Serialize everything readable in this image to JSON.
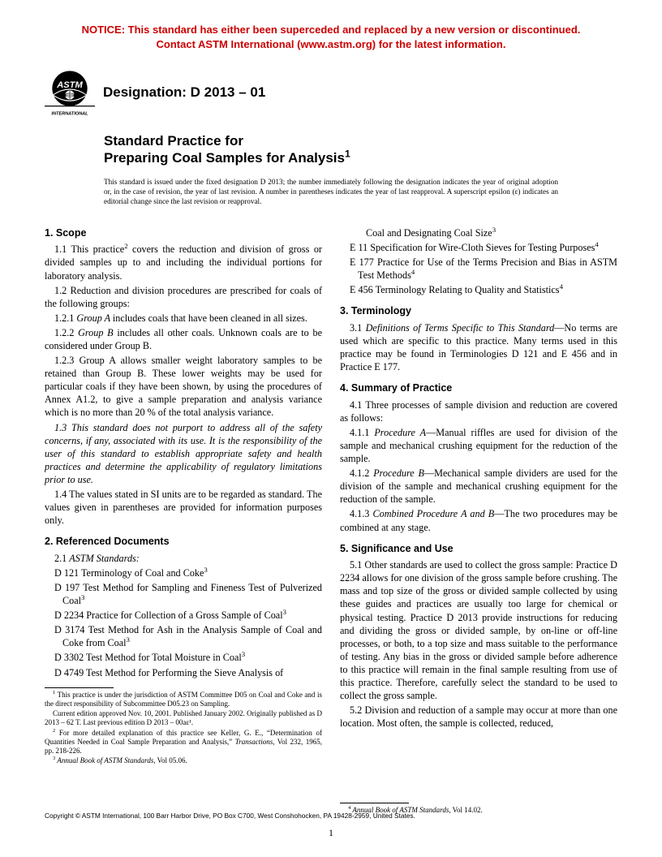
{
  "notice": {
    "color": "#cc0000",
    "line1": "NOTICE: This standard has either been superceded and replaced by a new version or discontinued.",
    "line2": "Contact ASTM International (www.astm.org) for the latest information."
  },
  "logo": {
    "text_int": "INTERNATIONAL",
    "bg": "#000000",
    "fg": "#ffffff"
  },
  "designation": "Designation: D 2013 – 01",
  "title": {
    "line1": "Standard Practice for",
    "line2": "Preparing Coal Samples for Analysis",
    "sup": "1"
  },
  "issued_note": "This standard is issued under the fixed designation D 2013; the number immediately following the designation indicates the year of original adoption or, in the case of revision, the year of last revision. A number in parentheses indicates the year of last reapproval. A superscript epsilon (ε) indicates an editorial change since the last revision or reapproval.",
  "left_column": {
    "scope_head": "1. Scope",
    "s1_1a": "1.1 This practice",
    "s1_1_sup": "2",
    "s1_1b": " covers the reduction and division of gross or divided samples up to and including the individual portions for laboratory analysis.",
    "s1_2": "1.2 Reduction and division procedures are prescribed for coals of the following groups:",
    "s1_2_1a": "1.2.1 ",
    "s1_2_1_label": "Group A ",
    "s1_2_1b": " includes coals that have been cleaned in all sizes.",
    "s1_2_2a": "1.2.2 ",
    "s1_2_2_label": "Group B ",
    "s1_2_2b": " includes all other coals. Unknown coals are to be considered under Group B.",
    "s1_2_3": "1.2.3 Group A allows smaller weight laboratory samples to be retained than Group B. These lower weights may be used for particular coals if they have been shown, by using the procedures of Annex A1.2, to give a sample preparation and analysis variance which is no more than 20 % of the total analysis variance.",
    "s1_3": "1.3 This standard does not purport to address all of the safety concerns, if any, associated with its use. It is the responsibility of the user of this standard to establish appropriate safety and health practices and determine the applicability of regulatory limitations prior to use.",
    "s1_4": "1.4 The values stated in SI units are to be regarded as standard. The values given in parentheses are provided for information purposes only.",
    "refdocs_head": "2. Referenced Documents",
    "s2_1": "2.1 ",
    "s2_1_label": "ASTM Standards:",
    "refs": [
      {
        "a": "D 121  Terminology of Coal and Coke",
        "sup": "3"
      },
      {
        "a": "D 197  Test Method for Sampling and Fineness Test of Pulverized Coal",
        "sup": "3"
      },
      {
        "a": "D 2234  Practice for Collection of a Gross Sample of Coal",
        "sup": "3"
      },
      {
        "a": "D 3174  Test Method for Ash in the Analysis Sample of Coal and Coke from Coal",
        "sup": "3"
      },
      {
        "a": "D 3302  Test Method for Total Moisture in Coal",
        "sup": "3"
      },
      {
        "a": "D 4749  Test Method for Performing the Sieve Analysis of",
        "sup": ""
      }
    ],
    "footnotes": [
      {
        "sup": "1",
        "text": " This practice is under the jurisdiction of ASTM Committee D05 on Coal and Coke and is the direct responsibility of Subcommittee D05.23 on Sampling."
      },
      {
        "sup": "",
        "text": "Current edition approved Nov. 10, 2001. Published January 2002. Originally published as D 2013 – 62 T. Last previous edition D 2013 – 00aε¹."
      },
      {
        "sup": "2",
        "text": " For more detailed explanation of this practice see Keller, G. E., “Determination of Quantities Needed in Coal Sample Preparation and Analysis,” Transactions, Vol 232, 1965, pp. 218-226."
      },
      {
        "sup": "3",
        "text": " Annual Book of ASTM Standards, Vol 05.06."
      }
    ]
  },
  "right_column": {
    "refs_cont": [
      {
        "a": "Coal and Designating Coal Size",
        "sup": "3",
        "cont": true
      },
      {
        "a": "E 11  Specification for Wire-Cloth Sieves for Testing Purposes",
        "sup": "4"
      },
      {
        "a": "E 177  Practice for Use of the Terms Precision and Bias in ASTM Test Methods",
        "sup": "4"
      },
      {
        "a": "E 456  Terminology Relating to Quality and Statistics",
        "sup": "4"
      }
    ],
    "term_head": "3. Terminology",
    "s3_1a": "3.1 ",
    "s3_1_label": "Definitions of Terms Specific to This Standard",
    "s3_1b": "—No terms are used which are specific to this practice. Many terms used in this practice may be found in Terminologies D 121 and E 456 and in Practice E 177.",
    "summary_head": "4. Summary of Practice",
    "s4_1": "4.1 Three processes of sample division and reduction are covered as follows:",
    "s4_1_1a": "4.1.1 ",
    "s4_1_1_label": "Procedure A",
    "s4_1_1b": "—Manual riffles are used for division of the sample and mechanical crushing equipment for the reduction of the sample.",
    "s4_1_2a": "4.1.2 ",
    "s4_1_2_label": "Procedure B",
    "s4_1_2b": "—Mechanical sample dividers are used for the division of the sample and mechanical crushing equipment for the reduction of the sample.",
    "s4_1_3a": "4.1.3 ",
    "s4_1_3_label": "Combined Procedure A and B",
    "s4_1_3b": "—The two procedures may be combined at any stage.",
    "sig_head": "5. Significance and Use",
    "s5_1": "5.1 Other standards are used to collect the gross sample: Practice D 2234 allows for one division of the gross sample before crushing. The mass and top size of the gross or divided sample collected by using these guides and practices are usually too large for chemical or physical testing. Practice D 2013 provide instructions for reducing and dividing the gross or divided sample, by on-line or off-line processes, or both, to a top size and mass suitable to the performance of testing. Any bias in the gross or divided sample before adherence to this practice will remain in the final sample resulting from use of this practice. Therefore, carefully select the standard to be used to collect the gross sample.",
    "s5_2": "5.2 Division and reduction of a sample may occur at more than one location. Most often, the sample is collected, reduced,",
    "footnotes": [
      {
        "sup": "4",
        "text": " Annual Book of ASTM Standards, Vol 14.02."
      }
    ]
  },
  "copyright": "Copyright © ASTM International, 100 Barr Harbor Drive, PO Box C700, West Conshohocken, PA 19428-2959, United States.",
  "page_number": "1"
}
